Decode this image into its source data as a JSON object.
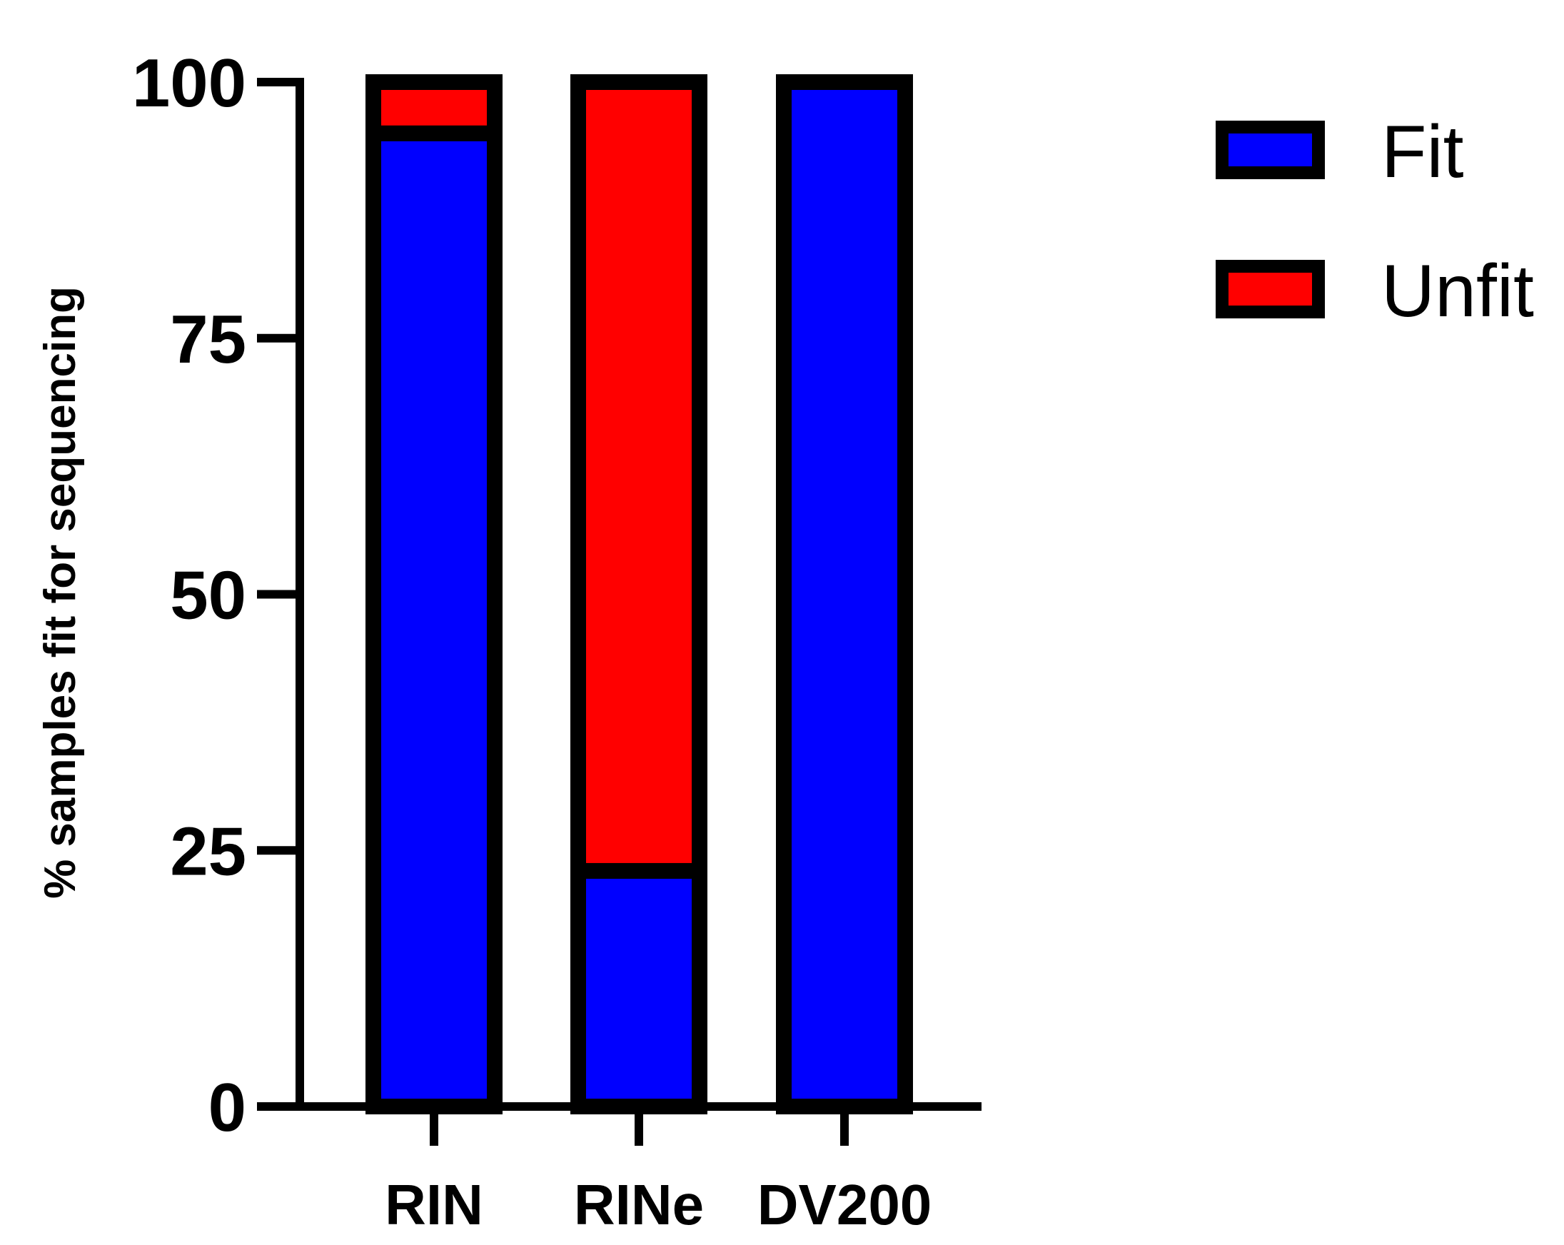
{
  "chart_data": {
    "type": "bar",
    "stacked": true,
    "categories": [
      "RIN",
      "RINe",
      "DV200"
    ],
    "series": [
      {
        "name": "Fit",
        "color": "#0000ff",
        "values": [
          95,
          23,
          100
        ]
      },
      {
        "name": "Unfit",
        "color": "#ff0000",
        "values": [
          5,
          77,
          0
        ]
      }
    ],
    "ylabel": "% samples fit for sequencing",
    "ylim": [
      0,
      100
    ],
    "yticks": [
      "0",
      "25",
      "50",
      "75",
      "100"
    ],
    "legend_position": "top-right",
    "grid": false
  }
}
